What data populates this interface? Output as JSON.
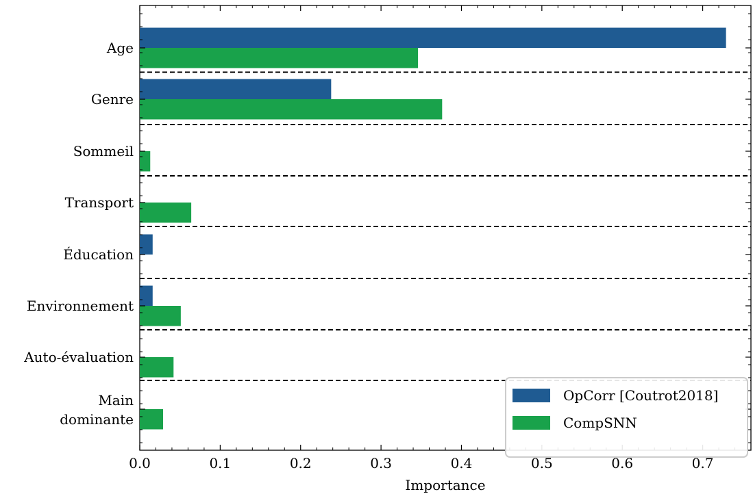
{
  "chart_data": {
    "type": "bar",
    "orientation": "horizontal",
    "categories": [
      [
        "Age"
      ],
      [
        "Genre"
      ],
      [
        "Sommeil"
      ],
      [
        "Transport"
      ],
      [
        "Éducation"
      ],
      [
        "Environnement"
      ],
      [
        "Auto-évaluation"
      ],
      [
        "Main",
        "dominante"
      ]
    ],
    "series": [
      {
        "name": "OpCorr [Coutrot2018]",
        "color": "#1f5b92",
        "values": [
          0.729,
          0.238,
          0.0,
          0.0,
          0.016,
          0.016,
          0.0,
          0.0
        ]
      },
      {
        "name": "CompSNN",
        "color": "#19a24b",
        "values": [
          0.346,
          0.376,
          0.013,
          0.064,
          0.0,
          0.051,
          0.042,
          0.029
        ]
      }
    ],
    "xlabel": "Importance",
    "ylabel": "",
    "xlim": [
      0.0,
      0.76
    ],
    "xticks": [
      0.0,
      0.1,
      0.2,
      0.3,
      0.4,
      0.5,
      0.6,
      0.7
    ],
    "xtick_labels": [
      "0.0",
      "0.1",
      "0.2",
      "0.3",
      "0.4",
      "0.5",
      "0.6",
      "0.7"
    ],
    "separators": "dashed lines between categories",
    "grid": false,
    "legend_position": "bottom-right"
  }
}
